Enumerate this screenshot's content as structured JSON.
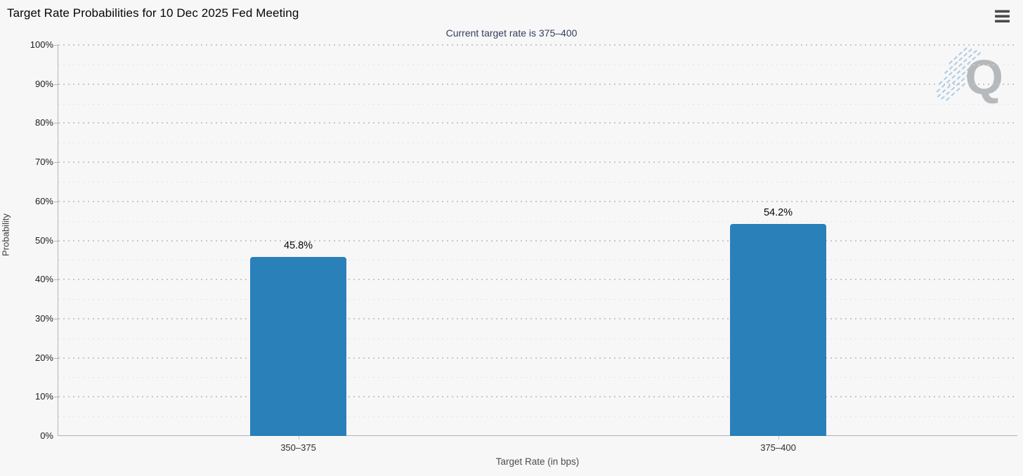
{
  "chart_data": {
    "type": "bar",
    "title": "Target Rate Probabilities for 10 Dec 2025 Fed Meeting",
    "subtitle": "Current target rate is 375–400",
    "categories": [
      "350–375",
      "375–400"
    ],
    "values": [
      45.8,
      54.2
    ],
    "value_labels": [
      "45.8%",
      "54.2%"
    ],
    "xlabel": "Target Rate (in bps)",
    "ylabel": "Probability",
    "ylim": [
      0,
      100
    ],
    "ytick_step": 10,
    "ytick_minor_step": 5,
    "ytick_suffix": "%",
    "grid": "horizontal-dotted",
    "legend": "none",
    "bar_color": "#2a80b9"
  },
  "icons": {
    "menu": "hamburger-menu"
  },
  "watermark": {
    "letter": "Q"
  },
  "colors": {
    "background": "#f7f7f8",
    "bar": "#2a80b9",
    "axis": "#b4b4b8",
    "grid_major": "#c7c7cb",
    "grid_minor": "#e4e4e8",
    "subtitle": "#33405a",
    "watermark_gray": "#b6b9bc",
    "watermark_blue": "#aecbe4"
  }
}
